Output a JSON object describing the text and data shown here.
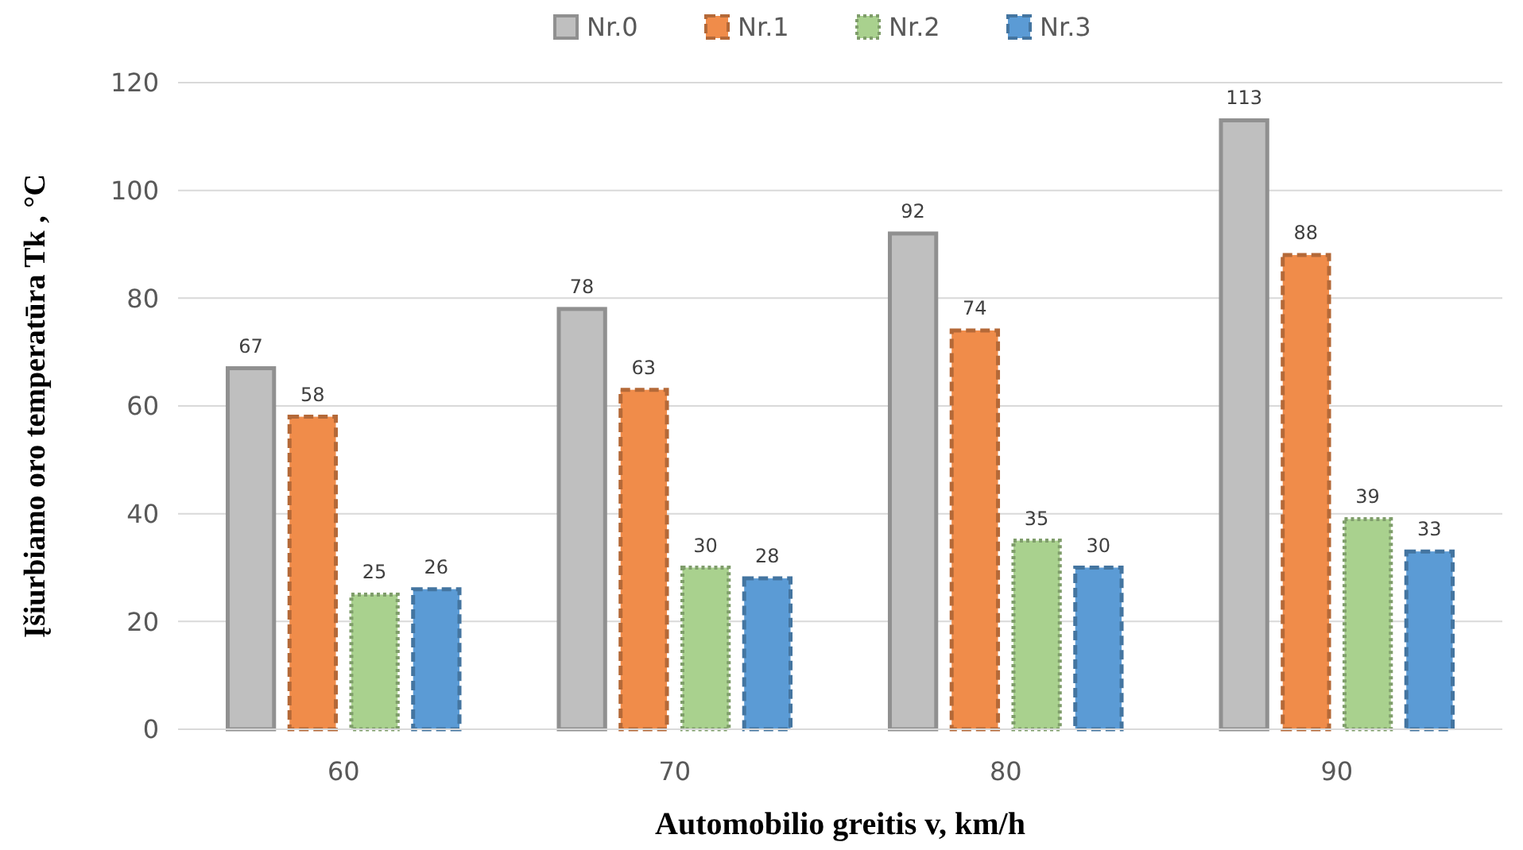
{
  "chart_data": {
    "type": "bar",
    "xlabel": "Automobilio greitis v, km/h",
    "ylabel": "Įšiurbiamo oro temperatūra Tk , °C",
    "categories": [
      "60",
      "70",
      "80",
      "90"
    ],
    "series": [
      {
        "name": "Nr.0",
        "color": "#bfbfbf",
        "line_style": "solid",
        "values": [
          67,
          78,
          92,
          113
        ]
      },
      {
        "name": "Nr.1",
        "color": "#f08c4a",
        "line_style": "dashed",
        "values": [
          58,
          63,
          74,
          88
        ]
      },
      {
        "name": "Nr.2",
        "color": "#a9d18e",
        "line_style": "dotted",
        "values": [
          25,
          30,
          35,
          39
        ]
      },
      {
        "name": "Nr.3",
        "color": "#5b9bd5",
        "line_style": "dashed",
        "values": [
          26,
          28,
          30,
          33
        ]
      }
    ],
    "ylim": [
      0,
      120
    ],
    "yticks": [
      0,
      20,
      40,
      60,
      80,
      100,
      120
    ],
    "grid": "y",
    "legend": "top",
    "data_labels": true
  }
}
